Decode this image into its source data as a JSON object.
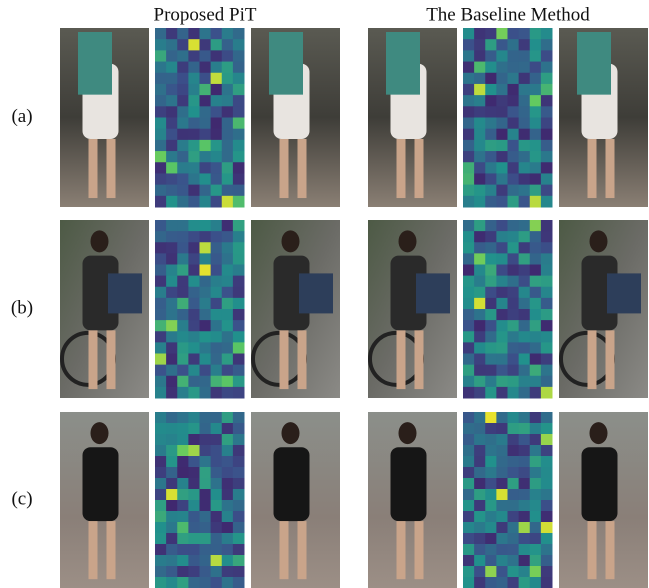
{
  "header": {
    "left": "Proposed PiT",
    "right": "The Baseline Method"
  },
  "rows": [
    {
      "label": "(a)"
    },
    {
      "label": "(b)"
    },
    {
      "label": "(c)"
    }
  ]
}
